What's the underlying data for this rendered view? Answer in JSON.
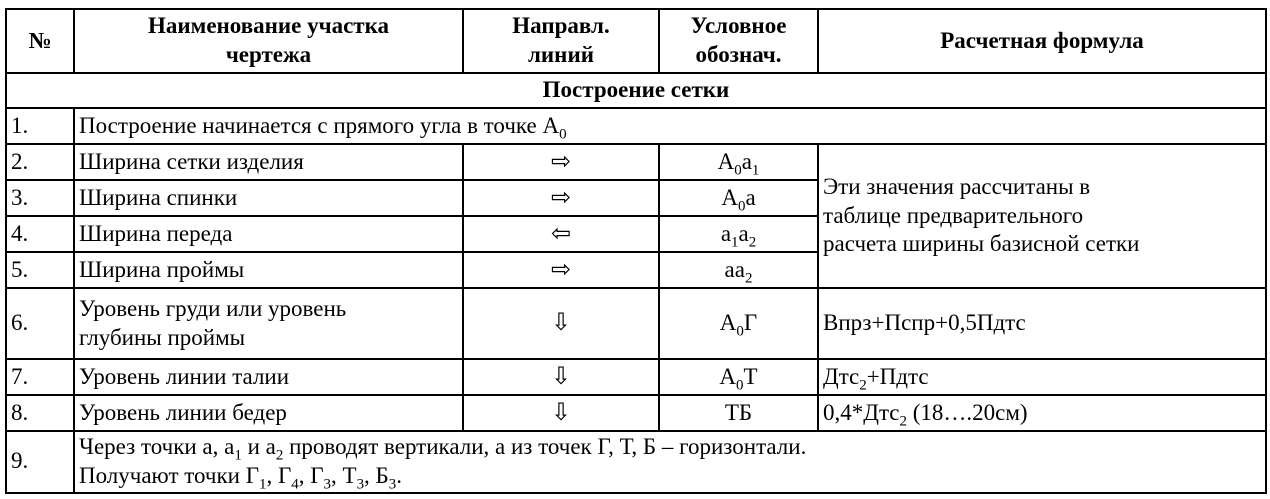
{
  "page": {
    "background": "#ffffff",
    "text_color": "#000000",
    "border_color": "#000000"
  },
  "table": {
    "section_title": "Построение сетки",
    "columns": [
      {
        "label": "№"
      },
      {
        "label": "Наименование участка\nчертежа"
      },
      {
        "label": "Направл.\nлиний"
      },
      {
        "label": "Условное\nобознач."
      },
      {
        "label": "Расчетная формула"
      }
    ],
    "merged_formula_note": "Эти значения рассчитаны в\nтаблице предварительного\nрасчета ширины базисной сетки",
    "rows": [
      {
        "num": "1.",
        "text": "Построение начинается с прямого угла в точке А₀"
      },
      {
        "num": "2.",
        "name": "Ширина сетки изделия",
        "direction": "right",
        "arrow": "⇨",
        "symbol": "А₀а₁"
      },
      {
        "num": "3.",
        "name": "Ширина спинки",
        "direction": "right",
        "arrow": "⇨",
        "symbol": "А₀а"
      },
      {
        "num": "4.",
        "name": "Ширина переда",
        "direction": "left",
        "arrow": "⇦",
        "symbol": "а₁а₂"
      },
      {
        "num": "5.",
        "name": "Ширина проймы",
        "direction": "right",
        "arrow": "⇨",
        "symbol": "аа₂"
      },
      {
        "num": "6.",
        "name": "Уровень груди или уровень\nглубины проймы",
        "direction": "down",
        "arrow": "⇩",
        "symbol": "А₀Г",
        "formula": "Впрз+Пспр+0,5Пдтс"
      },
      {
        "num": "7.",
        "name": "Уровень линии талии",
        "direction": "down",
        "arrow": "⇩",
        "symbol": "А₀Т",
        "formula": "Дтс₂+Пдтс"
      },
      {
        "num": "8.",
        "name": "Уровень линии бедер",
        "direction": "down",
        "arrow": "⇩",
        "symbol": "ТБ",
        "formula": "0,4*Дтс₂ (18….20см)"
      },
      {
        "num": "9.",
        "text": "Через точки а, а₁ и а₂ проводят вертикали, а из точек Г, Т, Б – горизонтали.\nПолучают точки Г₁, Г₄, Г₃, Т₃, Б₃."
      }
    ]
  }
}
